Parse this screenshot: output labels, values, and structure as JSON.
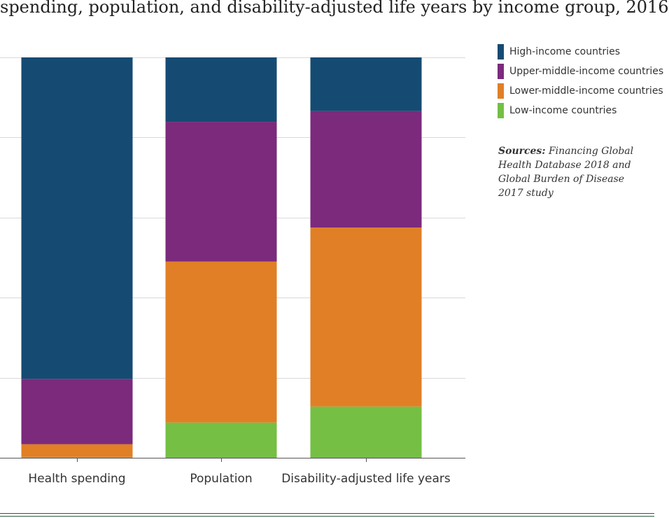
{
  "chart_data": {
    "type": "bar",
    "stacked": true,
    "normalized": true,
    "title": "spending, population, and disability-adjusted life years by income group, 2016",
    "categories": [
      "Health spending",
      "Population",
      "Disability-adjusted life years"
    ],
    "ylim": [
      0,
      1
    ],
    "y_gridlines": [
      0.2,
      0.4,
      0.6,
      0.8,
      1.0
    ],
    "grid": true,
    "legend_position": "top-right",
    "series": [
      {
        "name": "Low-income countries",
        "color": "#74bf44",
        "values": [
          0.002,
          0.088,
          0.128
        ]
      },
      {
        "name": "Lower-middle-income countries",
        "color": "#e07f26",
        "values": [
          0.032,
          0.402,
          0.447
        ]
      },
      {
        "name": "Upper-middle-income countries",
        "color": "#7b2a7c",
        "values": [
          0.163,
          0.349,
          0.291
        ]
      },
      {
        "name": "High-income countries",
        "color": "#154b72",
        "values": [
          0.803,
          0.161,
          0.134
        ]
      }
    ]
  },
  "legend": {
    "items": [
      {
        "label": "High-income countries",
        "color": "#154b72"
      },
      {
        "label": "Upper-middle-income countries",
        "color": "#7b2a7c"
      },
      {
        "label": "Lower-middle-income countries",
        "color": "#e07f26"
      },
      {
        "label": "Low-income countries",
        "color": "#74bf44"
      }
    ]
  },
  "sources": {
    "label": "Sources:",
    "text": "Financing Global Health Database 2018 and Global Burden of Disease 2017 study"
  }
}
